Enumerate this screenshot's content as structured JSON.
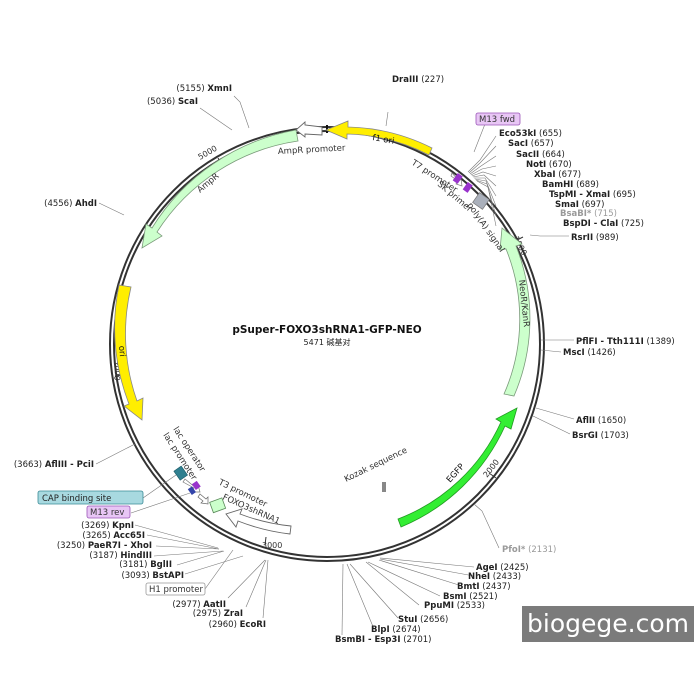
{
  "plasmid": {
    "name": "pSuper-FOXO3shRNA1-GFP-NEO",
    "length_label": "5471 碱基对",
    "length": 5471
  },
  "colors": {
    "backbone": "#333333",
    "yellow": "#ffee00",
    "green_light": "#ccffcc",
    "green_bright": "#33ee33",
    "outline_white": "#ffffff",
    "tag_purple": "#e8c6f5",
    "tag_teal": "#a8d9e0",
    "watermark_bg": "#7b7b7b"
  },
  "ticks": [
    {
      "label": "1000",
      "pos": 1000
    },
    {
      "label": "2000",
      "pos": 2000
    },
    {
      "label": "3000",
      "pos": 3000
    },
    {
      "label": "4000",
      "pos": 4000
    },
    {
      "label": "5000",
      "pos": 5000
    }
  ],
  "sites": [
    {
      "name": "DraIII",
      "pos": "(227)"
    },
    {
      "name": "Eco53kI",
      "pos": "(655)"
    },
    {
      "name": "SacI",
      "pos": "(657)"
    },
    {
      "name": "SacII",
      "pos": "(664)"
    },
    {
      "name": "NotI",
      "pos": "(670)"
    },
    {
      "name": "XbaI",
      "pos": "(677)"
    },
    {
      "name": "BamHI",
      "pos": "(689)"
    },
    {
      "name": "TspMI - XmaI",
      "pos": "(695)"
    },
    {
      "name": "SmaI",
      "pos": "(697)"
    },
    {
      "name": "BsaBI*",
      "pos": "(715)"
    },
    {
      "name": "BspDI - ClaI",
      "pos": "(725)"
    },
    {
      "name": "RsrII",
      "pos": "(989)"
    },
    {
      "name": "PflFI - Tth111I",
      "pos": "(1389)"
    },
    {
      "name": "MscI",
      "pos": "(1426)"
    },
    {
      "name": "AflII",
      "pos": "(1650)"
    },
    {
      "name": "BsrGI",
      "pos": "(1703)"
    },
    {
      "name": "PfoI*",
      "pos": "(2131)"
    },
    {
      "name": "AgeI",
      "pos": "(2425)"
    },
    {
      "name": "NheI",
      "pos": "(2433)"
    },
    {
      "name": "BmtI",
      "pos": "(2437)"
    },
    {
      "name": "BsmI",
      "pos": "(2521)"
    },
    {
      "name": "PpuMI",
      "pos": "(2533)"
    },
    {
      "name": "StuI",
      "pos": "(2656)"
    },
    {
      "name": "BlpI",
      "pos": "(2674)"
    },
    {
      "name": "BsmBI - Esp3I",
      "pos": "(2701)"
    },
    {
      "name": "EcoRI",
      "pos": "(2960)"
    },
    {
      "name": "ZraI",
      "pos": "(2975)"
    },
    {
      "name": "AatII",
      "pos": "(2977)"
    },
    {
      "name": "BstAPI",
      "pos": "(3093)"
    },
    {
      "name": "BglII",
      "pos": "(3181)"
    },
    {
      "name": "HindIII",
      "pos": "(3187)"
    },
    {
      "name": "PaeR7I - XhoI",
      "pos": "(3250)"
    },
    {
      "name": "Acc65I",
      "pos": "(3265)"
    },
    {
      "name": "KpnI",
      "pos": "(3269)"
    },
    {
      "name": "AflIII - PciI",
      "pos": "(3663)"
    },
    {
      "name": "AhdI",
      "pos": "(4556)"
    },
    {
      "name": "ScaI",
      "pos": "(5036)"
    },
    {
      "name": "XmnI",
      "pos": "(5155)"
    }
  ],
  "features": {
    "f1_ori": "f1 ori",
    "ampr_promoter": "AmpR promoter",
    "ampr": "AmpR",
    "ori": "ori",
    "t7_promoter": "T7 promoter",
    "sk_primer": "SK primer",
    "polya_signal": "poly(A) signal",
    "neor_kanr": "NeoR/KanR",
    "egfp": "EGFP",
    "kozak": "Kozak sequence",
    "lac_operator": "lac operator",
    "lac_promoter": "lac promoter",
    "t3_promoter": "T3 promoter",
    "foxo3_shrna1": "FOXO3shRNA1"
  },
  "tags": {
    "m13_fwd": "M13 fwd",
    "m13_rev": "M13 rev",
    "cap_site": "CAP binding site",
    "h1_promoter": "H1 promoter"
  },
  "watermark": "biogege.com"
}
